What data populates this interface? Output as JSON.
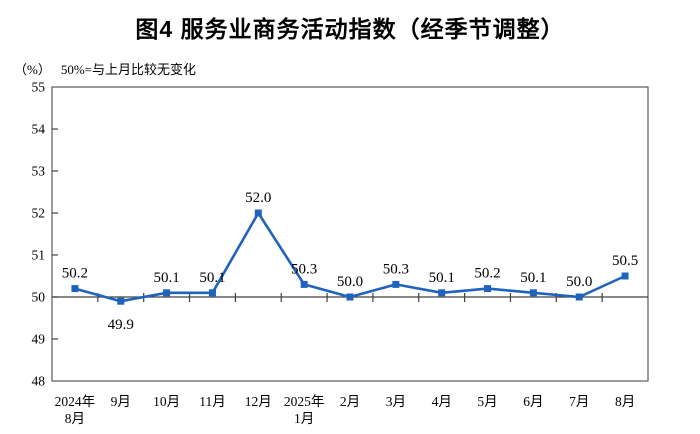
{
  "title": "图4 服务业商务活动指数（经季节调整）",
  "unit_label": "（%）",
  "axis_note": "50%=与上月比较无变化",
  "chart_data": {
    "type": "line",
    "title": "图4 服务业商务活动指数（经季节调整）",
    "subtitle": "（%）50%=与上月比较无变化",
    "categories": [
      [
        "2024年",
        "8月"
      ],
      [
        "9月"
      ],
      [
        "10月"
      ],
      [
        "11月"
      ],
      [
        "12月"
      ],
      [
        "2025年",
        "1月"
      ],
      [
        "2月"
      ],
      [
        "3月"
      ],
      [
        "4月"
      ],
      [
        "5月"
      ],
      [
        "6月"
      ],
      [
        "7月"
      ],
      [
        "8月"
      ]
    ],
    "series": [
      {
        "name": "服务业商务活动指数",
        "values": [
          50.2,
          49.9,
          50.1,
          50.1,
          52.0,
          50.3,
          50.0,
          50.3,
          50.1,
          50.2,
          50.1,
          50.0,
          50.5
        ],
        "point_labels": [
          "50.2",
          "49.9",
          "50.1",
          "50.1",
          "52.0",
          "50.3",
          "50.0",
          "50.3",
          "50.1",
          "50.2",
          "50.1",
          "50.0",
          "50.5"
        ],
        "label_positions": [
          "above",
          "below",
          "above",
          "above",
          "above",
          "above",
          "above",
          "above",
          "above",
          "above",
          "above",
          "above",
          "above"
        ],
        "color": "#1f63bc",
        "marker": "square"
      }
    ],
    "ylim": [
      48,
      55
    ],
    "yticks": [
      48,
      49,
      50,
      51,
      52,
      53,
      54,
      55
    ],
    "axis_cross_value": 50,
    "grid": false,
    "legend_position": "none",
    "colors": {
      "line": "#1f63bc",
      "plot_border": "#595959",
      "axis_line": "#404040",
      "text": "#000000"
    }
  }
}
